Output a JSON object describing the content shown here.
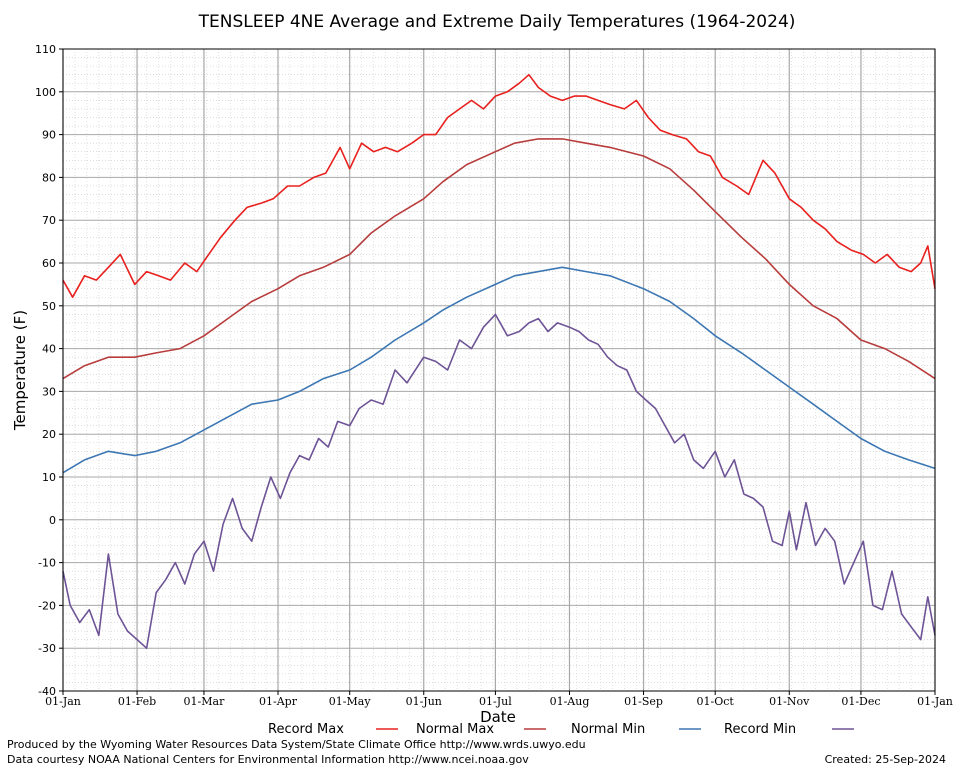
{
  "chart_data": {
    "type": "line",
    "title": "TENSLEEP 4NE Average and Extreme Daily Temperatures (1964-2024)",
    "xlabel": "Date",
    "ylabel": "Temperature (F)",
    "ylim": [
      -40,
      110
    ],
    "yticks": [
      110,
      100,
      90,
      80,
      70,
      60,
      50,
      40,
      30,
      20,
      10,
      0,
      -10,
      -20,
      -30,
      -40
    ],
    "xticks": [
      "01-Jan",
      "01-Feb",
      "01-Mar",
      "01-Apr",
      "01-May",
      "01-Jun",
      "01-Jul",
      "01-Aug",
      "01-Sep",
      "01-Oct",
      "01-Nov",
      "01-Dec",
      "01-Jan"
    ],
    "xtick_days": [
      1,
      32,
      60,
      91,
      121,
      152,
      182,
      213,
      244,
      274,
      305,
      335,
      366
    ],
    "grid": true,
    "legend_position": "bottom",
    "x_unit": "day of year (1 = 01-Jan)",
    "series": [
      {
        "name": "Record Max",
        "color": "#e8201e",
        "x": [
          1,
          5,
          10,
          15,
          20,
          25,
          31,
          36,
          41,
          46,
          52,
          57,
          62,
          67,
          73,
          78,
          84,
          89,
          95,
          100,
          106,
          111,
          117,
          121,
          126,
          131,
          136,
          141,
          147,
          152,
          157,
          162,
          167,
          172,
          177,
          182,
          187,
          192,
          196,
          200,
          205,
          210,
          215,
          220,
          225,
          230,
          236,
          241,
          246,
          251,
          256,
          262,
          267,
          272,
          277,
          283,
          288,
          294,
          299,
          305,
          310,
          315,
          320,
          325,
          331,
          336,
          341,
          346,
          351,
          356,
          360,
          363,
          366
        ],
        "values": [
          56,
          52,
          57,
          56,
          59,
          62,
          55,
          58,
          57,
          56,
          60,
          58,
          62,
          66,
          70,
          73,
          74,
          75,
          78,
          78,
          80,
          81,
          87,
          82,
          88,
          86,
          87,
          86,
          88,
          90,
          90,
          94,
          96,
          98,
          96,
          99,
          100,
          102,
          104,
          101,
          99,
          98,
          99,
          99,
          98,
          97,
          96,
          98,
          94,
          91,
          90,
          89,
          86,
          85,
          80,
          78,
          76,
          84,
          81,
          75,
          73,
          70,
          68,
          65,
          63,
          62,
          60,
          62,
          59,
          58,
          60,
          64,
          54
        ]
      },
      {
        "name": "Normal Max",
        "color": "#b83c3c",
        "x": [
          1,
          10,
          20,
          31,
          40,
          50,
          60,
          70,
          80,
          91,
          100,
          110,
          121,
          130,
          140,
          152,
          160,
          170,
          182,
          190,
          200,
          210,
          220,
          230,
          244,
          255,
          265,
          274,
          285,
          295,
          305,
          315,
          325,
          335,
          345,
          355,
          366
        ],
        "values": [
          33,
          36,
          38,
          38,
          39,
          40,
          43,
          47,
          51,
          54,
          57,
          59,
          62,
          67,
          71,
          75,
          79,
          83,
          86,
          88,
          89,
          89,
          88,
          87,
          85,
          82,
          77,
          72,
          66,
          61,
          55,
          50,
          47,
          42,
          40,
          37,
          33
        ]
      },
      {
        "name": "Normal Min",
        "color": "#3d77b3",
        "x": [
          1,
          10,
          20,
          31,
          40,
          50,
          60,
          70,
          80,
          91,
          100,
          110,
          121,
          130,
          140,
          152,
          160,
          170,
          182,
          190,
          200,
          210,
          220,
          230,
          244,
          255,
          265,
          274,
          285,
          295,
          305,
          315,
          325,
          335,
          345,
          355,
          366
        ],
        "values": [
          11,
          14,
          16,
          15,
          16,
          18,
          21,
          24,
          27,
          28,
          30,
          33,
          35,
          38,
          42,
          46,
          49,
          52,
          55,
          57,
          58,
          59,
          58,
          57,
          54,
          51,
          47,
          43,
          39,
          35,
          31,
          27,
          23,
          19,
          16,
          14,
          12
        ]
      },
      {
        "name": "Record Min",
        "color": "#6e5496",
        "x": [
          1,
          4,
          8,
          12,
          16,
          20,
          24,
          28,
          32,
          36,
          40,
          44,
          48,
          52,
          56,
          60,
          64,
          68,
          72,
          76,
          80,
          84,
          88,
          92,
          96,
          100,
          104,
          108,
          112,
          116,
          121,
          125,
          130,
          135,
          140,
          145,
          152,
          157,
          162,
          167,
          172,
          177,
          182,
          187,
          192,
          196,
          200,
          204,
          208,
          213,
          217,
          221,
          225,
          229,
          233,
          237,
          241,
          245,
          249,
          253,
          257,
          261,
          265,
          269,
          274,
          278,
          282,
          286,
          290,
          294,
          298,
          302,
          305,
          308,
          312,
          316,
          320,
          324,
          328,
          332,
          336,
          340,
          344,
          348,
          352,
          356,
          360,
          363,
          366
        ],
        "values": [
          -12,
          -20,
          -24,
          -21,
          -27,
          -8,
          -22,
          -26,
          -28,
          -30,
          -17,
          -14,
          -10,
          -15,
          -8,
          -5,
          -12,
          -1,
          5,
          -2,
          -5,
          3,
          10,
          5,
          11,
          15,
          14,
          19,
          17,
          23,
          22,
          26,
          28,
          27,
          35,
          32,
          38,
          37,
          35,
          42,
          40,
          45,
          48,
          43,
          44,
          46,
          47,
          44,
          46,
          45,
          44,
          42,
          41,
          38,
          36,
          35,
          30,
          28,
          26,
          22,
          18,
          20,
          14,
          12,
          16,
          10,
          14,
          6,
          5,
          3,
          -5,
          -6,
          2,
          -7,
          4,
          -6,
          -2,
          -5,
          -15,
          -10,
          -5,
          -20,
          -21,
          -12,
          -22,
          -25,
          -28,
          -18,
          -27
        ]
      }
    ]
  },
  "footer": {
    "line1": "Produced by the Wyoming Water Resources Data System/State Climate Office http://www.wrds.uwyo.edu",
    "line2": "Data courtesy NOAA National Centers for Environmental Information http://www.ncei.noaa.gov",
    "created": "Created:  25-Sep-2024"
  }
}
